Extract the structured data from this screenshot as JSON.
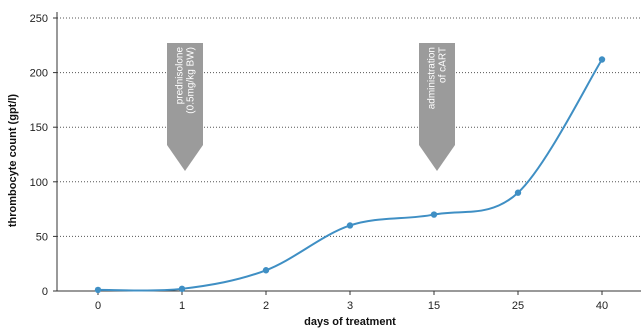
{
  "chart_data": {
    "type": "line",
    "title": "",
    "xlabel": "days of treatment",
    "ylabel": "thrombocyte count (gpt/l)",
    "categories": [
      "0",
      "1",
      "2",
      "3",
      "15",
      "25",
      "40"
    ],
    "values": [
      1,
      2,
      19,
      60,
      70,
      90,
      212
    ],
    "ylim": [
      0,
      250
    ],
    "yticks": [
      0,
      50,
      100,
      150,
      200,
      250
    ],
    "grid": "horizontal dotted",
    "line_color": "#3f8fc4",
    "annotations": [
      {
        "lines": [
          "prednisolone",
          "(0.5mg/kg BW)"
        ],
        "category": "1",
        "color": "#9b9b9b"
      },
      {
        "lines": [
          "administration",
          "of cART"
        ],
        "category": "15",
        "color": "#9b9b9b"
      }
    ]
  }
}
